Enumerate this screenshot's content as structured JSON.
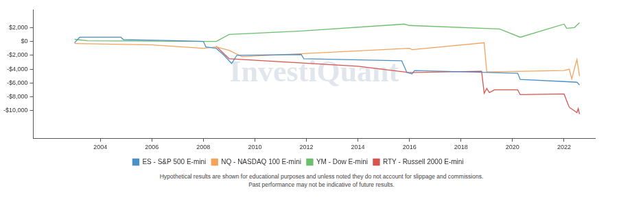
{
  "chart_data": {
    "type": "line",
    "watermark": "InvestiQuant",
    "footnotes": [
      "Hypothetical results are shown for educational purposes and unless noted they do not account for slippage and commissions.",
      "Past performance may not be indicative of future results."
    ],
    "xlim": [
      2001.4,
      2023.2
    ],
    "xticks": [
      2004,
      2006,
      2008,
      2010,
      2012,
      2014,
      2016,
      2018,
      2020,
      2022
    ],
    "ylim": [
      -14000,
      4600
    ],
    "yticks": [
      {
        "value": 2000,
        "label": "$2,000"
      },
      {
        "value": 0,
        "label": "$0"
      },
      {
        "value": -2000,
        "label": "-$2,000"
      },
      {
        "value": -4000,
        "label": "-$4,000"
      },
      {
        "value": -6000,
        "label": "-$6,000"
      },
      {
        "value": -8000,
        "label": "-$8,000"
      },
      {
        "value": -10000,
        "label": "-$10,000"
      }
    ],
    "grid": false,
    "legend": "bottom",
    "series": [
      {
        "name": "ES - S&P 500 E-mini",
        "color": "#4a90c8",
        "x": [
          2003.0,
          2003.2,
          2004.8,
          2004.9,
          2006.5,
          2008.0,
          2008.1,
          2008.5,
          2008.8,
          2009.1,
          2009.3,
          2011.8,
          2011.9,
          2015.7,
          2015.9,
          2016.1,
          2016.2,
          2020.2,
          2020.3,
          2022.0,
          2022.5,
          2022.6
        ],
        "values": [
          -200,
          600,
          600,
          250,
          150,
          0,
          -800,
          -1000,
          -2000,
          -3200,
          -2000,
          -1900,
          -2500,
          -2800,
          -4500,
          -4700,
          -4200,
          -4600,
          -5500,
          -5800,
          -5900,
          -6300
        ]
      },
      {
        "name": "NQ - NASDAQ 100 E-mini",
        "color": "#f5a35c",
        "x": [
          2003.0,
          2006.0,
          2008.0,
          2008.5,
          2009.0,
          2009.5,
          2016.0,
          2016.1,
          2018.9,
          2019.0,
          2022.0,
          2022.2,
          2022.3,
          2022.5,
          2022.6
        ],
        "values": [
          -300,
          -500,
          -1000,
          -800,
          -1300,
          -2200,
          -1000,
          -1200,
          -200,
          -4400,
          -4200,
          -4000,
          -5400,
          -2600,
          -5000
        ]
      },
      {
        "name": "YM - Dow E-mini",
        "color": "#6cbf6c",
        "x": [
          2003.0,
          2003.5,
          2008.5,
          2009.0,
          2011.8,
          2015.8,
          2016.0,
          2019.5,
          2020.3,
          2022.0,
          2022.1,
          2022.4,
          2022.6
        ],
        "values": [
          300,
          100,
          0,
          1000,
          1500,
          2500,
          2300,
          1800,
          600,
          2500,
          1900,
          2000,
          2700
        ]
      },
      {
        "name": "RTY - Russell 2000 E-mini",
        "color": "#d9534f",
        "x": [
          2008.5,
          2009.0,
          2014.0,
          2016.0,
          2018.8,
          2018.9,
          2019.0,
          2019.1,
          2019.3,
          2020.2,
          2020.3,
          2022.0,
          2022.2,
          2022.5,
          2022.55,
          2022.6
        ],
        "values": [
          -700,
          -2500,
          -3600,
          -4500,
          -4300,
          -7500,
          -6800,
          -7400,
          -7000,
          -7000,
          -7700,
          -7600,
          -9500,
          -10300,
          -9700,
          -10500
        ]
      }
    ]
  }
}
